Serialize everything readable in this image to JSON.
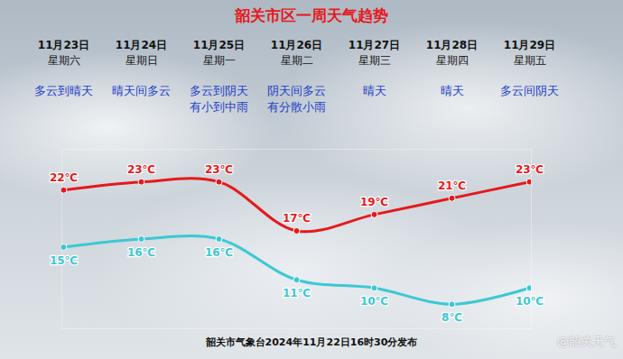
{
  "chart_data": {
    "type": "line",
    "title": "韶关市区一周天气趋势",
    "categories": [
      "11月23日",
      "11月24日",
      "11月25日",
      "11月26日",
      "11月27日",
      "11月28日",
      "11月29日"
    ],
    "weekdays": [
      "星期六",
      "星期日",
      "星期一",
      "星期二",
      "星期三",
      "星期四",
      "星期五"
    ],
    "weather": [
      [
        "多云到晴天"
      ],
      [
        "晴天间多云"
      ],
      [
        "多云到阴天",
        "有小到中雨"
      ],
      [
        "阴天间多云",
        "有分散小雨"
      ],
      [
        "晴天"
      ],
      [
        "晴天"
      ],
      [
        "多云间阴天"
      ]
    ],
    "series": [
      {
        "color": "#e5191c",
        "marker": "circle",
        "values": [
          22,
          23,
          23,
          17,
          19,
          21,
          23
        ],
        "value_labels": [
          "22℃",
          "23℃",
          "23℃",
          "17℃",
          "19℃",
          "21℃",
          "23℃"
        ]
      },
      {
        "color": "#3cc8d4",
        "marker": "circle",
        "values": [
          15,
          16,
          16,
          11,
          10,
          8,
          10
        ],
        "value_labels": [
          "15℃",
          "16℃",
          "16℃",
          "11℃",
          "10℃",
          "8℃",
          "10℃"
        ]
      }
    ],
    "ylim": [
      5,
      27
    ],
    "grid": false,
    "data_labels": true,
    "caption": "韶关市气象台2024年11月22日16时30分发布",
    "watermark": "@韶关天气"
  }
}
